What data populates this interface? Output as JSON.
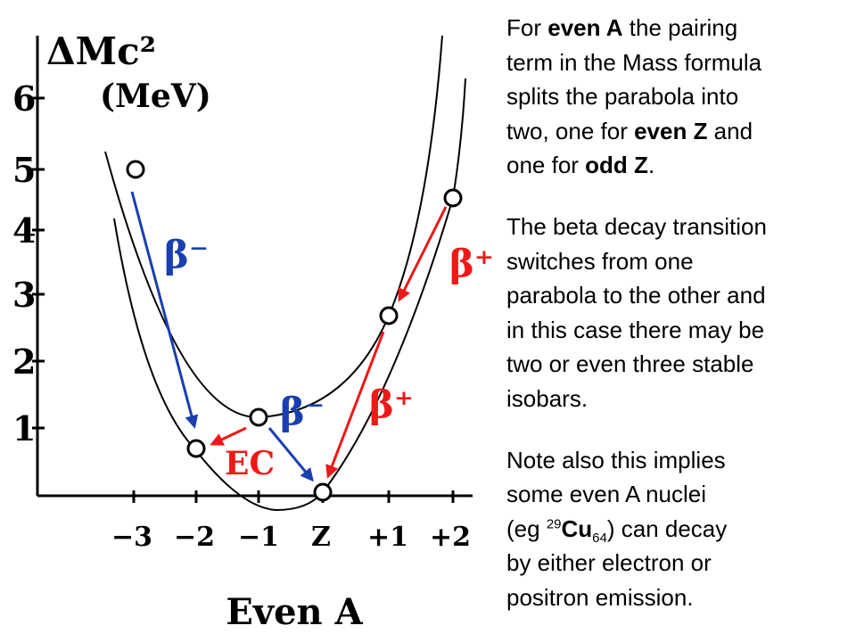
{
  "diagram": {
    "y_axis_title": "ΔMc²",
    "y_axis_unit": "(MeV)",
    "y_tick_labels": [
      "1",
      "2",
      "3",
      "4",
      "5",
      "6"
    ],
    "x_tick_labels": [
      "−3",
      "−2",
      "−1",
      "Z",
      "+1",
      "+2"
    ],
    "x_axis_title": "Even A",
    "arrow_labels": [
      "β⁻",
      "β⁻",
      "β⁺",
      "β⁺",
      "EC"
    ]
  },
  "note": {
    "paragraphs": [
      [
        [
          "For ",
          "even A",
          " the pairing"
        ],
        [
          "term in the Mass formula"
        ],
        [
          "splits the parabola into"
        ],
        [
          "two, one for ",
          "even Z",
          " and"
        ],
        [
          "one for ",
          "odd Z",
          "."
        ]
      ],
      [
        [
          "The beta decay transition"
        ],
        [
          "switches from one"
        ],
        [
          "parabola to the other and"
        ],
        [
          "in this case there may be"
        ],
        [
          "two or even three stable"
        ],
        [
          "isobars."
        ]
      ],
      [
        [
          "Note also this implies"
        ],
        [
          "some even A nuclei"
        ],
        [
          "(eg ",
          "29",
          "Cu",
          "64",
          ") can decay"
        ],
        [
          "by either electron or"
        ],
        [
          "positron emission."
        ]
      ]
    ]
  }
}
